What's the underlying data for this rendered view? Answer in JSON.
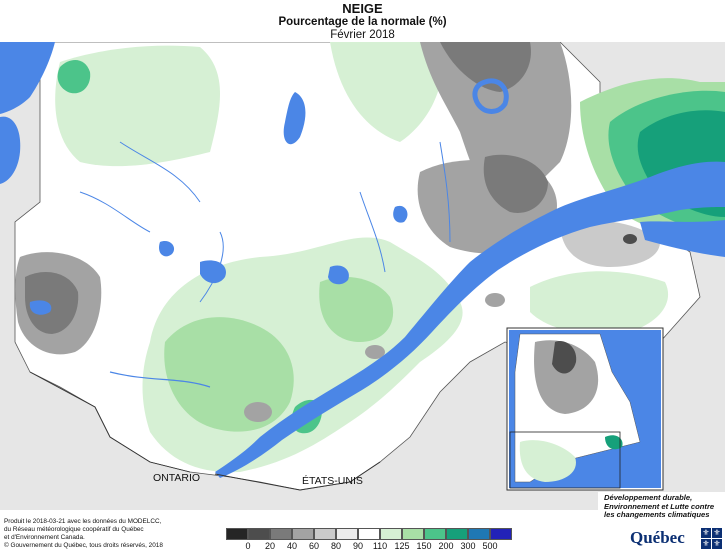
{
  "header": {
    "title": "NEIGE",
    "subtitle": "Pourcentage de la normale (%)",
    "period": "Février 2018"
  },
  "map_labels": {
    "ontario": "ONTARIO",
    "usa": "ÉTATS-UNIS"
  },
  "credits": {
    "line1": "Produit le 2018-03-21 avec les données du MODELCC,",
    "line2": "du Réseau météorologique coopératif du Québec",
    "line3": "et d'Environnement Canada.",
    "copyright": "© Gouvernement du Québec, tous droits réservés, 2018"
  },
  "legend": {
    "ticks": [
      "0",
      "20",
      "40",
      "60",
      "80",
      "90",
      "110",
      "125",
      "150",
      "200",
      "300",
      "500"
    ],
    "colors": [
      "#252525",
      "#4d4d4d",
      "#7a7a7a",
      "#a3a3a3",
      "#cacaca",
      "#ececec",
      "#ffffff",
      "#d6f0d4",
      "#a8dfa6",
      "#4cc48a",
      "#16a07a",
      "#1f78b4",
      "#2222b8"
    ]
  },
  "ministry": {
    "name": "Développement durable, Environnement et Lutte contre les changements climatiques",
    "brand": "Québec"
  },
  "colors": {
    "water": "#4b86e6",
    "land_outside": "#e8e8e8",
    "border": "#333333"
  }
}
